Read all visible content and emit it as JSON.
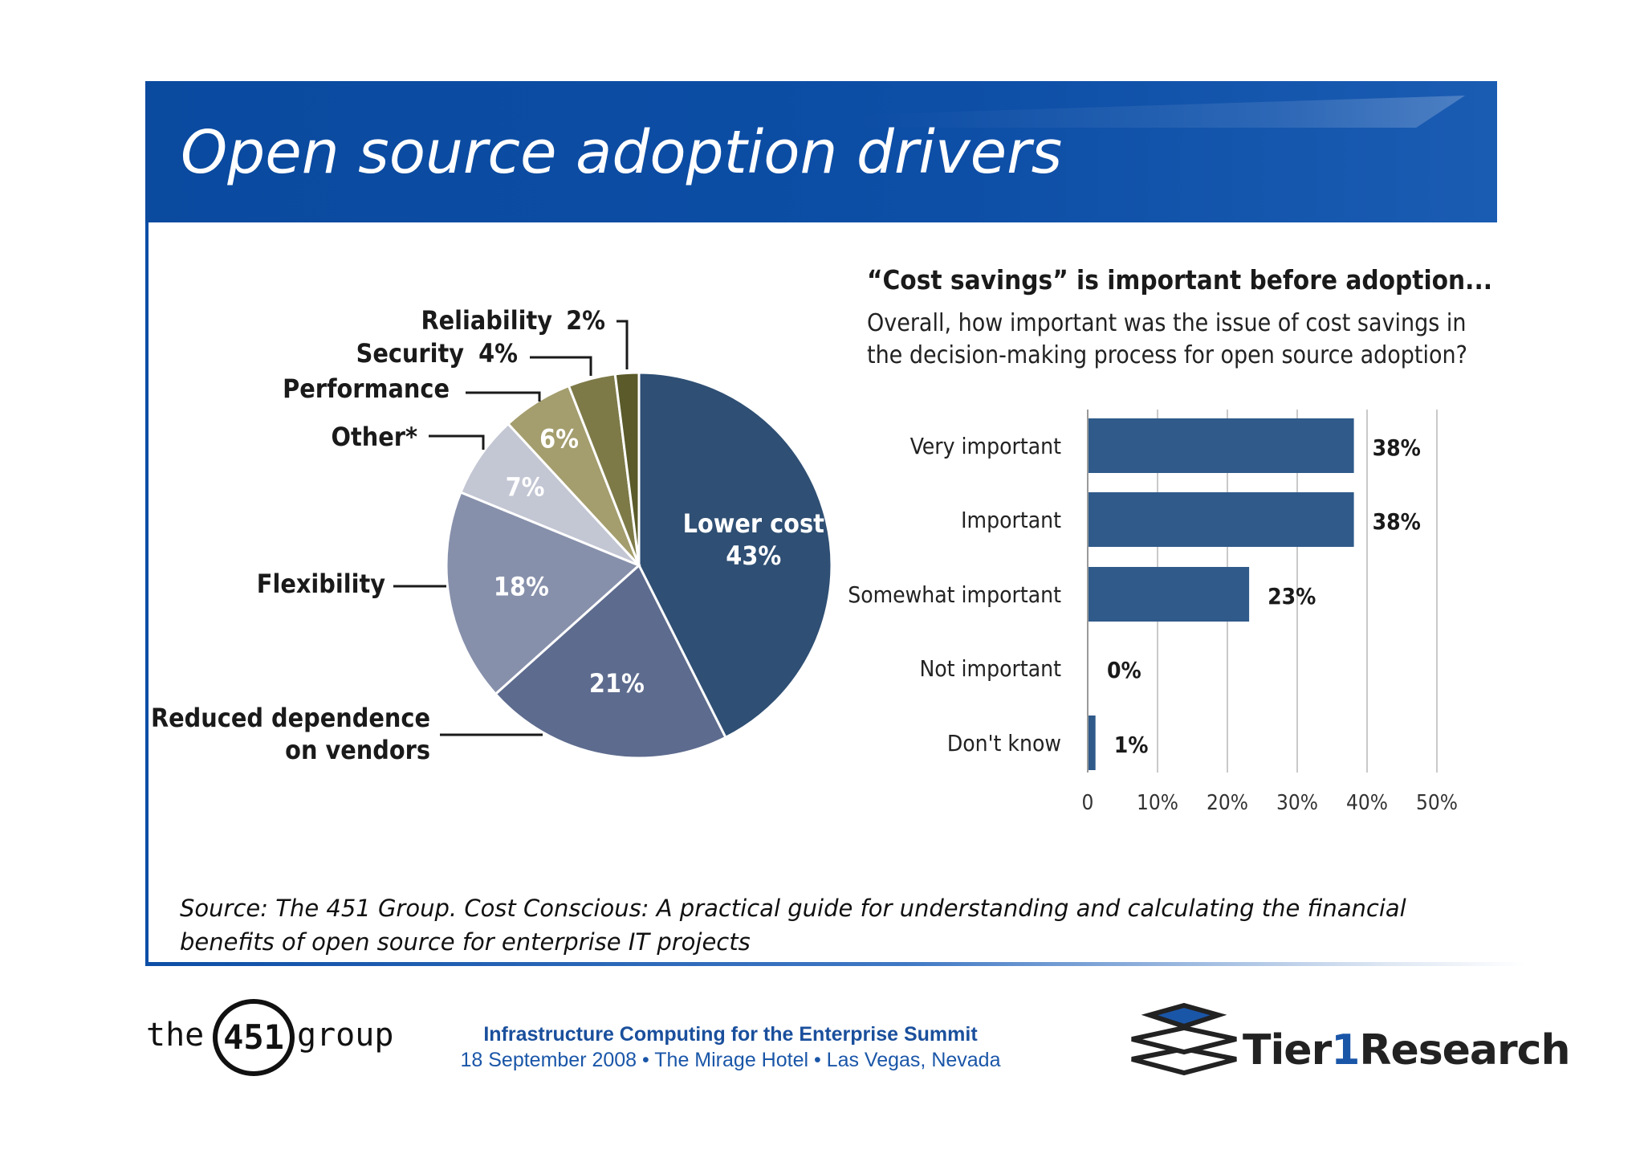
{
  "slide": {
    "title": "Open source adoption drivers",
    "source_note": "Source: The 451 Group. Cost Conscious: A practical guide for understanding and calculating the financial benefits of open source for enterprise IT projects"
  },
  "colors": {
    "banner": "#0d4ea6",
    "bar": "#2f5a8a",
    "pie": [
      "#2f4f74",
      "#5d6b8e",
      "#8790ab",
      "#c3c6d3",
      "#a49d6d",
      "#7d7a48",
      "#5a5a2a"
    ]
  },
  "chart_data": [
    {
      "type": "pie",
      "slices": [
        {
          "label": "Lower cost",
          "value": 43,
          "value_label": "43%"
        },
        {
          "label": "Reduced dependence on vendors",
          "value": 21,
          "value_label": "21%"
        },
        {
          "label": "Flexibility",
          "value": 18,
          "value_label": "18%"
        },
        {
          "label": "Other*",
          "value": 7,
          "value_label": "7%"
        },
        {
          "label": "Performance",
          "value": 6,
          "value_label": "6%"
        },
        {
          "label": "Security",
          "value": 4,
          "value_label": "4%"
        },
        {
          "label": "Reliability",
          "value": 2,
          "value_label": "2%"
        }
      ]
    },
    {
      "type": "bar",
      "orientation": "horizontal",
      "title": "“Cost savings” is important before adoption...",
      "subtitle": "Overall, how important was the issue of cost savings in the decision-making process for open source adoption?",
      "categories": [
        "Very important",
        "Important",
        "Somewhat important",
        "Not important",
        "Don't know"
      ],
      "values": [
        38,
        38,
        23,
        0,
        1
      ],
      "value_labels": [
        "38%",
        "38%",
        "23%",
        "0%",
        "1%"
      ],
      "xlim": [
        0,
        50
      ],
      "ticks": [
        "0",
        "10%",
        "20%",
        "30%",
        "40%",
        "50%"
      ],
      "grid": true
    }
  ],
  "footer": {
    "event": "Infrastructure Computing for the Enterprise Summit",
    "details": "18 September 2008 • The Mirage Hotel • Las Vegas, Nevada",
    "logo_left": {
      "pre": "the",
      "num": "451",
      "post": "group"
    },
    "logo_right": {
      "pre": "Tier",
      "num": "1",
      "post": "Research"
    }
  }
}
